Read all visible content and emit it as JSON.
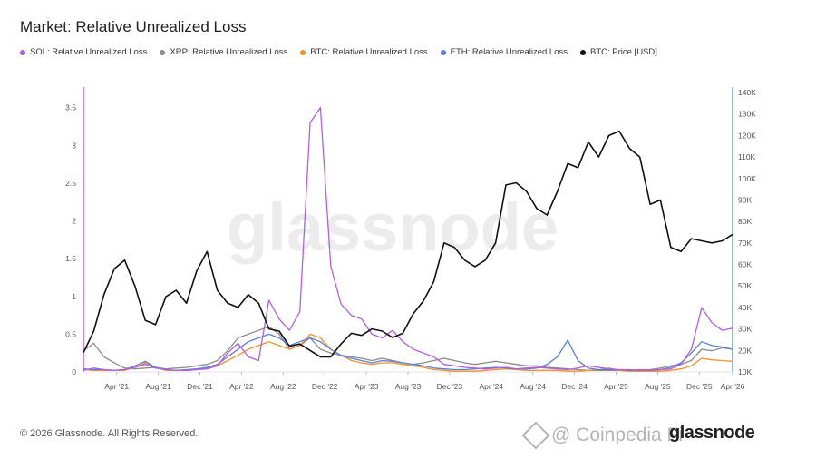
{
  "title": "Market: Relative Unrealized Loss",
  "legend": [
    {
      "label": "SOL: Relative Unrealized Loss",
      "color": "#b35ee0"
    },
    {
      "label": "XRP: Relative Unrealized Loss",
      "color": "#8c8c8c"
    },
    {
      "label": "BTC: Relative Unrealized Loss",
      "color": "#f0932b"
    },
    {
      "label": "ETH: Relative Unrealized Loss",
      "color": "#5a7fd6"
    },
    {
      "label": "BTC: Price [USD]",
      "color": "#111111"
    }
  ],
  "footer": {
    "copyright": "© 2026 Glassnode. All Rights Reserved.",
    "brand": "glassnode",
    "overlay_text": "@ Coinpedia Fi"
  },
  "watermark": "glassnode",
  "chart_data": {
    "type": "line",
    "title": "Market: Relative Unrealized Loss",
    "x_tick_labels": [
      "Apr '21",
      "Aug '21",
      "Dec '21",
      "Apr '22",
      "Aug '22",
      "Dec '22",
      "Apr '23",
      "Aug '23",
      "Dec '23",
      "Apr '24",
      "Aug '24",
      "Dec '24",
      "Apr '25",
      "Aug '25",
      "Dec '25",
      "Apr '26"
    ],
    "y_left": {
      "ticks": [
        "0",
        "0.5",
        "1",
        "1.5",
        "2",
        "2.5",
        "3",
        "3.5"
      ],
      "range": [
        0,
        3.7
      ]
    },
    "y_right": {
      "ticks": [
        "10K",
        "20K",
        "30K",
        "40K",
        "50K",
        "60K",
        "70K",
        "80K",
        "90K",
        "100K",
        "110K",
        "120K",
        "130K",
        "140K"
      ],
      "range": [
        10000,
        140000
      ]
    },
    "x_range": [
      0,
      63
    ],
    "series": [
      {
        "name": "SOL: Relative Unrealized Loss",
        "color": "#b35ee0",
        "axis": "left",
        "x": [
          0,
          1,
          2,
          3,
          4,
          5,
          6,
          7,
          8,
          9,
          10,
          11,
          12,
          13,
          14,
          15,
          16,
          17,
          18,
          19,
          20,
          21,
          22,
          23,
          24,
          25,
          26,
          27,
          28,
          29,
          30,
          31,
          32,
          33,
          34,
          35,
          36,
          37,
          38,
          39,
          40,
          41,
          42,
          43,
          44,
          45,
          46,
          47,
          48,
          49,
          50,
          51,
          52,
          53,
          54,
          55,
          56,
          57,
          58,
          59,
          60,
          61,
          62,
          63
        ],
        "values": [
          0.02,
          0.05,
          0.03,
          0.02,
          0.03,
          0.06,
          0.1,
          0.05,
          0.03,
          0.02,
          0.02,
          0.03,
          0.04,
          0.08,
          0.25,
          0.38,
          0.2,
          0.15,
          0.95,
          0.7,
          0.55,
          0.8,
          3.3,
          3.5,
          1.4,
          0.9,
          0.75,
          0.7,
          0.5,
          0.45,
          0.55,
          0.4,
          0.3,
          0.25,
          0.2,
          0.1,
          0.08,
          0.06,
          0.05,
          0.04,
          0.05,
          0.06,
          0.04,
          0.05,
          0.06,
          0.05,
          0.04,
          0.03,
          0.05,
          0.08,
          0.06,
          0.04,
          0.03,
          0.03,
          0.02,
          0.02,
          0.03,
          0.04,
          0.1,
          0.3,
          0.85,
          0.65,
          0.55,
          0.58
        ]
      },
      {
        "name": "XRP: Relative Unrealized Loss",
        "color": "#8c8c8c",
        "axis": "left",
        "x": [
          0,
          1,
          2,
          3,
          4,
          5,
          6,
          7,
          8,
          9,
          10,
          11,
          12,
          13,
          14,
          15,
          16,
          17,
          18,
          19,
          20,
          21,
          22,
          23,
          24,
          25,
          26,
          27,
          28,
          29,
          30,
          31,
          32,
          33,
          34,
          35,
          36,
          37,
          38,
          39,
          40,
          41,
          42,
          43,
          44,
          45,
          46,
          47,
          48,
          49,
          50,
          51,
          52,
          53,
          54,
          55,
          56,
          57,
          58,
          59,
          60,
          61,
          62,
          63
        ],
        "values": [
          0.28,
          0.38,
          0.2,
          0.12,
          0.05,
          0.04,
          0.05,
          0.06,
          0.04,
          0.05,
          0.06,
          0.08,
          0.1,
          0.15,
          0.28,
          0.45,
          0.5,
          0.55,
          0.6,
          0.5,
          0.3,
          0.35,
          0.45,
          0.3,
          0.25,
          0.22,
          0.2,
          0.18,
          0.15,
          0.18,
          0.15,
          0.12,
          0.1,
          0.12,
          0.15,
          0.18,
          0.15,
          0.12,
          0.1,
          0.12,
          0.14,
          0.12,
          0.1,
          0.08,
          0.08,
          0.06,
          0.05,
          0.04,
          0.03,
          0.02,
          0.02,
          0.02,
          0.02,
          0.02,
          0.03,
          0.03,
          0.05,
          0.08,
          0.1,
          0.15,
          0.3,
          0.28,
          0.32,
          0.3
        ]
      },
      {
        "name": "BTC: Relative Unrealized Loss",
        "color": "#f0932b",
        "axis": "left",
        "x": [
          0,
          1,
          2,
          3,
          4,
          5,
          6,
          7,
          8,
          9,
          10,
          11,
          12,
          13,
          14,
          15,
          16,
          17,
          18,
          19,
          20,
          21,
          22,
          23,
          24,
          25,
          26,
          27,
          28,
          29,
          30,
          31,
          32,
          33,
          34,
          35,
          36,
          37,
          38,
          39,
          40,
          41,
          42,
          43,
          44,
          45,
          46,
          47,
          48,
          49,
          50,
          51,
          52,
          53,
          54,
          55,
          56,
          57,
          58,
          59,
          60,
          61,
          62,
          63
        ],
        "values": [
          0.03,
          0.02,
          0.02,
          0.02,
          0.02,
          0.06,
          0.12,
          0.06,
          0.02,
          0.02,
          0.02,
          0.03,
          0.05,
          0.08,
          0.15,
          0.22,
          0.3,
          0.35,
          0.4,
          0.35,
          0.3,
          0.35,
          0.5,
          0.45,
          0.3,
          0.22,
          0.15,
          0.12,
          0.1,
          0.12,
          0.12,
          0.1,
          0.08,
          0.06,
          0.03,
          0.02,
          0.01,
          0.01,
          0.01,
          0.02,
          0.03,
          0.04,
          0.03,
          0.02,
          0.02,
          0.02,
          0.02,
          0.01,
          0.01,
          0.02,
          0.03,
          0.05,
          0.02,
          0.01,
          0.01,
          0.01,
          0.01,
          0.02,
          0.04,
          0.08,
          0.18,
          0.16,
          0.15,
          0.14
        ]
      },
      {
        "name": "ETH: Relative Unrealized Loss",
        "color": "#5a7fd6",
        "axis": "left",
        "x": [
          0,
          1,
          2,
          3,
          4,
          5,
          6,
          7,
          8,
          9,
          10,
          11,
          12,
          13,
          14,
          15,
          16,
          17,
          18,
          19,
          20,
          21,
          22,
          23,
          24,
          25,
          26,
          27,
          28,
          29,
          30,
          31,
          32,
          33,
          34,
          35,
          36,
          37,
          38,
          39,
          40,
          41,
          42,
          43,
          44,
          45,
          46,
          47,
          48,
          49,
          50,
          51,
          52,
          53,
          54,
          55,
          56,
          57,
          58,
          59,
          60,
          61,
          62,
          63
        ],
        "values": [
          0.04,
          0.03,
          0.03,
          0.02,
          0.03,
          0.08,
          0.14,
          0.06,
          0.03,
          0.02,
          0.03,
          0.04,
          0.06,
          0.1,
          0.2,
          0.3,
          0.4,
          0.45,
          0.5,
          0.45,
          0.35,
          0.4,
          0.45,
          0.4,
          0.3,
          0.22,
          0.18,
          0.15,
          0.12,
          0.15,
          0.14,
          0.12,
          0.1,
          0.08,
          0.05,
          0.04,
          0.03,
          0.03,
          0.04,
          0.05,
          0.06,
          0.05,
          0.04,
          0.04,
          0.05,
          0.1,
          0.2,
          0.42,
          0.15,
          0.05,
          0.03,
          0.03,
          0.03,
          0.02,
          0.02,
          0.02,
          0.03,
          0.06,
          0.12,
          0.25,
          0.4,
          0.35,
          0.33,
          0.3
        ]
      },
      {
        "name": "BTC: Price [USD]",
        "color": "#111111",
        "axis": "right",
        "x": [
          0,
          1,
          2,
          3,
          4,
          5,
          6,
          7,
          8,
          9,
          10,
          11,
          12,
          13,
          14,
          15,
          16,
          17,
          18,
          19,
          20,
          21,
          22,
          23,
          24,
          25,
          26,
          27,
          28,
          29,
          30,
          31,
          32,
          33,
          34,
          35,
          36,
          37,
          38,
          39,
          40,
          41,
          42,
          43,
          44,
          45,
          46,
          47,
          48,
          49,
          50,
          51,
          52,
          53,
          54,
          55,
          56,
          57,
          58,
          59,
          60,
          61,
          62,
          63
        ],
        "values": [
          19000,
          29000,
          46000,
          58000,
          62000,
          50000,
          34000,
          32000,
          45000,
          48000,
          42000,
          57000,
          66000,
          48000,
          42000,
          40000,
          46000,
          42000,
          30000,
          29000,
          22000,
          23000,
          20000,
          17000,
          17000,
          23000,
          28000,
          27000,
          30000,
          29000,
          26000,
          28000,
          37000,
          43000,
          52000,
          70000,
          68000,
          62000,
          59000,
          62000,
          70000,
          97000,
          98000,
          94000,
          86000,
          83000,
          94000,
          107000,
          105000,
          117000,
          110000,
          120000,
          122000,
          114000,
          110000,
          88000,
          90000,
          68000,
          66000,
          72000,
          71000,
          70000,
          71000,
          74000
        ]
      }
    ]
  }
}
